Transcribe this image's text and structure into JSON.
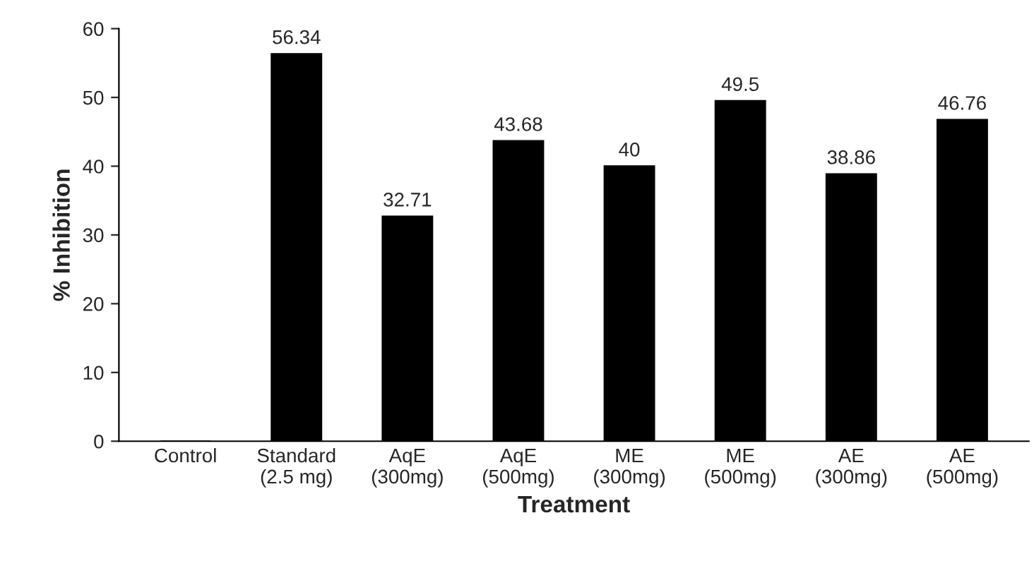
{
  "chart_data": {
    "type": "bar",
    "xlabel": "Treatment",
    "ylabel": "% Inhibition",
    "categories": [
      "Control",
      "Standard\n(2.5 mg)",
      "AqE\n(300mg)",
      "AqE\n(500mg)",
      "ME\n(300mg)",
      "ME\n(500mg)",
      "AE\n(300mg)",
      "AE\n(500mg)"
    ],
    "values": [
      0,
      56.34,
      32.71,
      43.68,
      40,
      49.5,
      38.86,
      46.76
    ],
    "value_labels": [
      null,
      "56.34",
      "32.71",
      "43.68",
      "40",
      "49.5",
      "38.86",
      "46.76"
    ],
    "color": "#000000",
    "ylim": [
      0,
      60
    ],
    "yticks": [
      0,
      10,
      20,
      30,
      40,
      50,
      60
    ],
    "grid": false,
    "legend": false
  }
}
